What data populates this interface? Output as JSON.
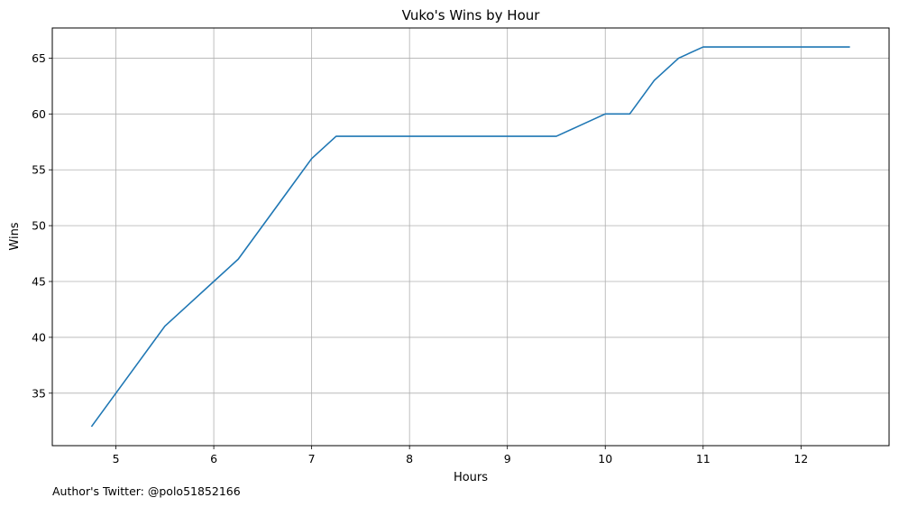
{
  "chart_data": {
    "type": "line",
    "title": "Vuko's Wins by Hour",
    "xlabel": "Hours",
    "ylabel": "Wins",
    "xlim": [
      4.35,
      12.9
    ],
    "ylim": [
      30.3,
      67.7
    ],
    "xticks": [
      5,
      6,
      7,
      8,
      9,
      10,
      11,
      12
    ],
    "yticks": [
      35,
      40,
      45,
      50,
      55,
      60,
      65
    ],
    "grid": true,
    "series": [
      {
        "color": "#1f77b4",
        "x": [
          4.75,
          5.0,
          5.25,
          5.5,
          5.75,
          6.0,
          6.25,
          6.5,
          6.75,
          7.0,
          7.25,
          7.5,
          7.75,
          8.0,
          8.25,
          8.5,
          8.75,
          9.0,
          9.25,
          9.5,
          9.75,
          10.0,
          10.25,
          10.5,
          10.75,
          11.0,
          11.25,
          11.5,
          11.75,
          12.0,
          12.25,
          12.5
        ],
        "y": [
          32,
          35,
          38,
          41,
          43,
          45,
          47,
          50,
          53,
          56,
          58,
          58,
          58,
          58,
          58,
          58,
          58,
          58,
          58,
          58,
          59,
          60,
          60,
          63,
          65,
          66,
          66,
          66,
          66,
          66,
          66,
          66
        ]
      }
    ]
  },
  "footer": {
    "note": "Author's Twitter: @polo51852166"
  }
}
